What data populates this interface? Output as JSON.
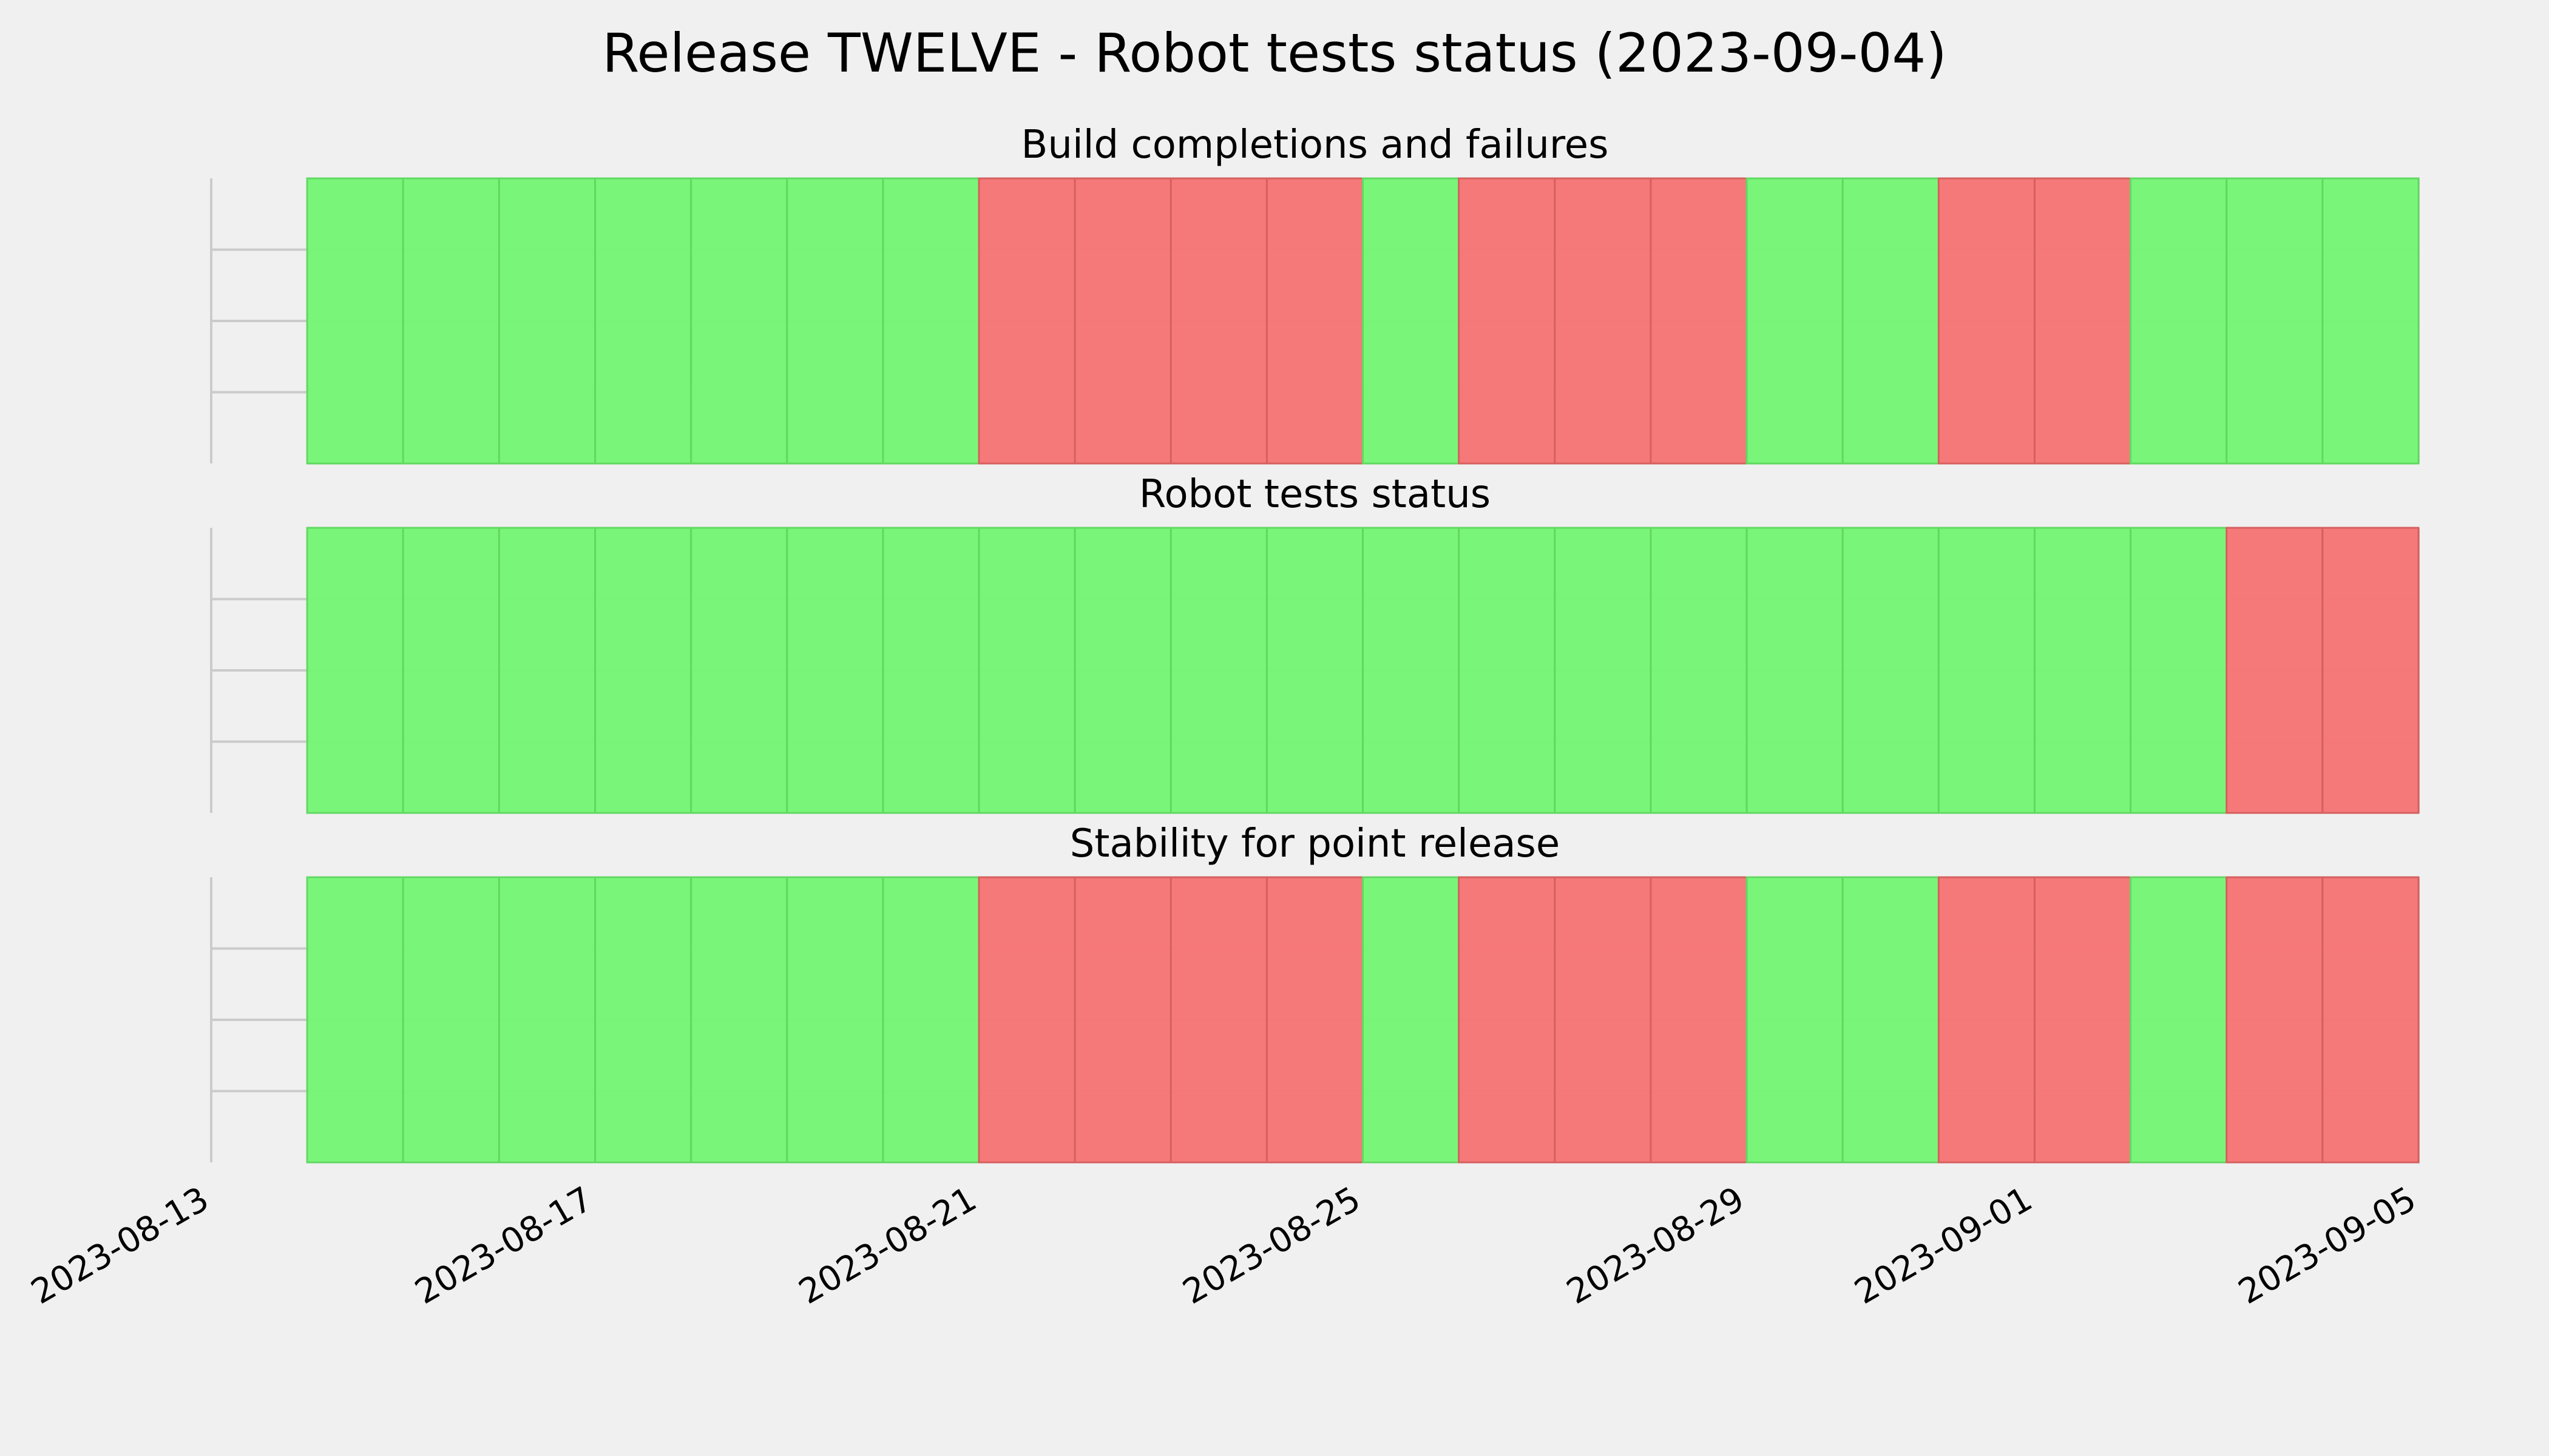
{
  "figure_title": "Release TWELVE - Robot tests status (2023-09-04)",
  "colors": {
    "background": "#f0f0f0",
    "grid": "#cbcbcb",
    "pass": "#76f676",
    "fail": "#f67676",
    "pass_edge": "#62d862",
    "fail_edge": "#d66060"
  },
  "chart_data": [
    {
      "type": "timeline",
      "title": "Build completions and failures",
      "grid": true,
      "xlim": [
        "2023-08-13",
        "2023-09-05"
      ],
      "x_ticks": [
        "2023-08-13",
        "2023-08-17",
        "2023-08-21",
        "2023-08-25",
        "2023-08-29",
        "2023-09-01",
        "2023-09-05"
      ],
      "days": [
        "2023-08-14",
        "2023-08-15",
        "2023-08-16",
        "2023-08-17",
        "2023-08-18",
        "2023-08-19",
        "2023-08-20",
        "2023-08-21",
        "2023-08-22",
        "2023-08-23",
        "2023-08-24",
        "2023-08-25",
        "2023-08-26",
        "2023-08-27",
        "2023-08-28",
        "2023-08-29",
        "2023-08-30",
        "2023-08-31",
        "2023-09-01",
        "2023-09-02",
        "2023-09-03",
        "2023-09-04"
      ],
      "status": [
        "pass",
        "pass",
        "pass",
        "pass",
        "pass",
        "pass",
        "pass",
        "fail",
        "fail",
        "fail",
        "fail",
        "pass",
        "fail",
        "fail",
        "fail",
        "pass",
        "pass",
        "fail",
        "fail",
        "pass",
        "pass",
        "pass"
      ]
    },
    {
      "type": "timeline",
      "title": "Robot tests status",
      "grid": true,
      "xlim": [
        "2023-08-13",
        "2023-09-05"
      ],
      "x_ticks": [
        "2023-08-13",
        "2023-08-17",
        "2023-08-21",
        "2023-08-25",
        "2023-08-29",
        "2023-09-01",
        "2023-09-05"
      ],
      "days": [
        "2023-08-14",
        "2023-08-15",
        "2023-08-16",
        "2023-08-17",
        "2023-08-18",
        "2023-08-19",
        "2023-08-20",
        "2023-08-21",
        "2023-08-22",
        "2023-08-23",
        "2023-08-24",
        "2023-08-25",
        "2023-08-26",
        "2023-08-27",
        "2023-08-28",
        "2023-08-29",
        "2023-08-30",
        "2023-08-31",
        "2023-09-01",
        "2023-09-02",
        "2023-09-03",
        "2023-09-04"
      ],
      "status": [
        "pass",
        "pass",
        "pass",
        "pass",
        "pass",
        "pass",
        "pass",
        "pass",
        "pass",
        "pass",
        "pass",
        "pass",
        "pass",
        "pass",
        "pass",
        "pass",
        "pass",
        "pass",
        "pass",
        "pass",
        "fail",
        "fail"
      ]
    },
    {
      "type": "timeline",
      "title": "Stability for point release",
      "grid": true,
      "xlim": [
        "2023-08-13",
        "2023-09-05"
      ],
      "x_ticks": [
        "2023-08-13",
        "2023-08-17",
        "2023-08-21",
        "2023-08-25",
        "2023-08-29",
        "2023-09-01",
        "2023-09-05"
      ],
      "days": [
        "2023-08-14",
        "2023-08-15",
        "2023-08-16",
        "2023-08-17",
        "2023-08-18",
        "2023-08-19",
        "2023-08-20",
        "2023-08-21",
        "2023-08-22",
        "2023-08-23",
        "2023-08-24",
        "2023-08-25",
        "2023-08-26",
        "2023-08-27",
        "2023-08-28",
        "2023-08-29",
        "2023-08-30",
        "2023-08-31",
        "2023-09-01",
        "2023-09-02",
        "2023-09-03",
        "2023-09-04"
      ],
      "status": [
        "pass",
        "pass",
        "pass",
        "pass",
        "pass",
        "pass",
        "pass",
        "fail",
        "fail",
        "fail",
        "fail",
        "pass",
        "fail",
        "fail",
        "fail",
        "pass",
        "pass",
        "fail",
        "fail",
        "pass",
        "fail",
        "fail"
      ]
    }
  ]
}
